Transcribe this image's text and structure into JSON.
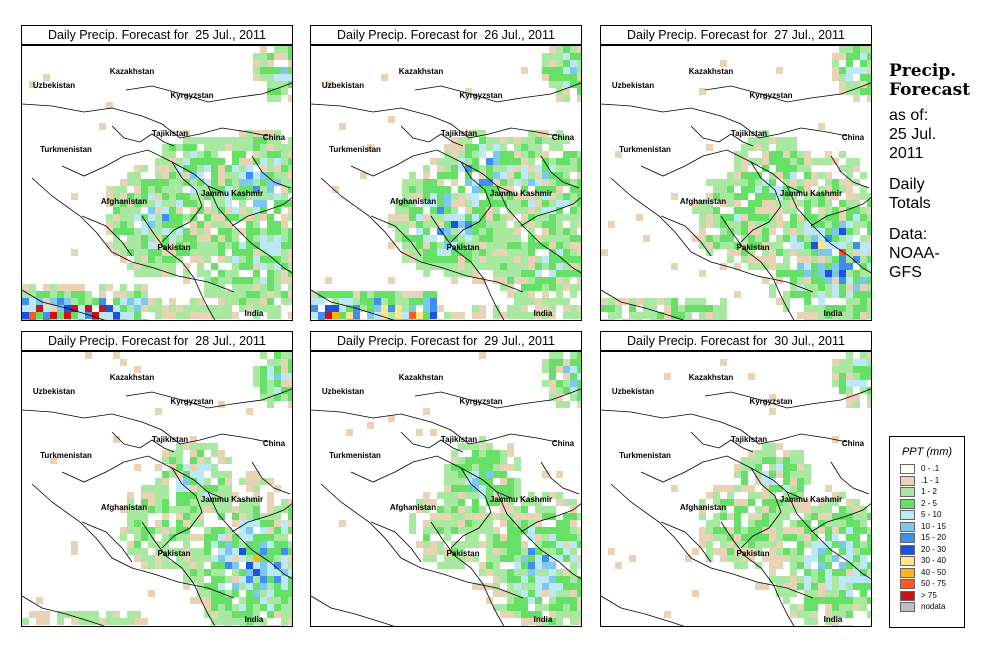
{
  "panels": [
    {
      "title": "Daily Precip. Forecast for  25 Jul., 2011",
      "pattern": [
        0.85,
        0.55,
        0.55,
        0.45,
        0.6
      ]
    },
    {
      "title": "Daily Precip. Forecast for  26 Jul., 2011",
      "pattern": [
        0.8,
        0.6,
        0.7,
        0.35,
        0.5
      ]
    },
    {
      "title": "Daily Precip. Forecast for  27 Jul., 2011",
      "pattern": [
        0.25,
        0.35,
        0.55,
        0.75,
        0.2
      ]
    },
    {
      "title": "Daily Precip. Forecast for  28 Jul., 2011",
      "pattern": [
        0.15,
        0.3,
        0.5,
        0.7,
        0.15
      ]
    },
    {
      "title": "Daily Precip. Forecast for  29 Jul., 2011",
      "pattern": [
        0.1,
        0.25,
        0.5,
        0.6,
        0.1
      ]
    },
    {
      "title": "Daily Precip. Forecast for  30 Jul., 2011",
      "pattern": [
        0.1,
        0.3,
        0.45,
        0.55,
        0.1
      ]
    }
  ],
  "map_labels": {
    "uzbekistan": "Uzbekistan",
    "kazakhstan": "Kazakhstan",
    "kyrgyzstan": "Kyrgyzstan",
    "tajikistan": "Tajikistan",
    "china": "China",
    "turkmenistan": "Turkmenistan",
    "afghanistan": "Afghanistan",
    "jammu_kashmir": "Jammu Kashmir",
    "pakistan": "Pakistan",
    "india": "India"
  },
  "sidebar": {
    "head1": "Precip.",
    "head2": "Forecast",
    "as_of": "as of:",
    "date1": "25 Jul.",
    "date2": "2011",
    "daily": "Daily",
    "totals": "Totals",
    "data_label": "Data:",
    "source1": "NOAA-",
    "source2": "GFS"
  },
  "legend": {
    "title": "PPT (mm)",
    "items": [
      {
        "label": "0 - .1",
        "color": "#ffffff"
      },
      {
        "label": ".1 - 1",
        "color": "#e8d4b4"
      },
      {
        "label": "1 - 2",
        "color": "#a8e8a0"
      },
      {
        "label": "2 - 5",
        "color": "#66e066"
      },
      {
        "label": "5 - 10",
        "color": "#bde9f7"
      },
      {
        "label": "10 - 15",
        "color": "#7cc8f0"
      },
      {
        "label": "15 - 20",
        "color": "#3f8ef0"
      },
      {
        "label": "20 - 30",
        "color": "#1e50e6"
      },
      {
        "label": "30 - 40",
        "color": "#ffe68c"
      },
      {
        "label": "40 - 50",
        "color": "#ffb414"
      },
      {
        "label": "50 - 75",
        "color": "#ff5a1e"
      },
      {
        "label": "> 75",
        "color": "#c81414"
      },
      {
        "label": "nodata",
        "color": "#bebebe"
      }
    ]
  }
}
